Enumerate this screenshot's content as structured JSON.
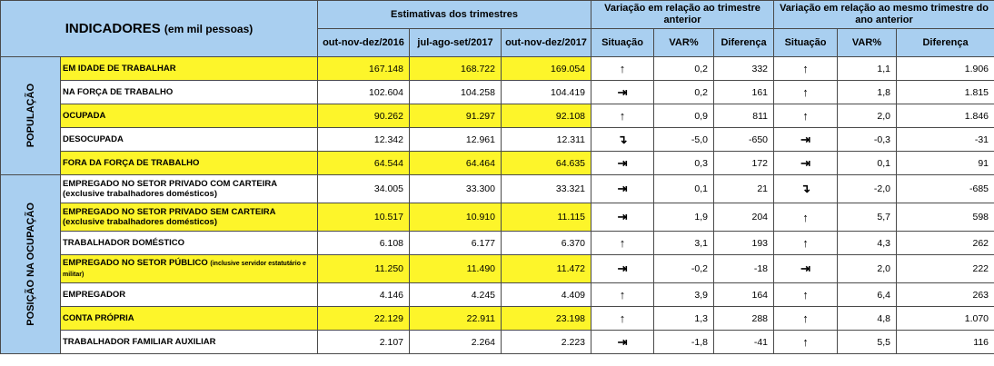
{
  "header": {
    "indicadores": "INDICADORES",
    "indicadores_sub": "(em mil pessoas)",
    "estimativas": "Estimativas dos trimestres",
    "var_anterior": "Variação em relação ao trimestre anterior",
    "var_mesmo": "Variação em relação ao mesmo trimestre do ano anterior",
    "periods": [
      "out-nov-dez/2016",
      "jul-ago-set/2017",
      "out-nov-dez/2017"
    ],
    "col_situacao": "Situação",
    "col_var": "VAR%",
    "col_diferenca": "Diferença"
  },
  "groups": {
    "populacao": "POPULAÇÃO",
    "posicao": "POSIÇÃO NA OCUPAÇÃO"
  },
  "rows": [
    {
      "label": "EM IDADE DE TRABALHAR",
      "sub": "",
      "v1": "167.148",
      "v2": "168.722",
      "v3": "169.054",
      "s1": "↑",
      "var1": "0,2",
      "dif1": "332",
      "s2": "↑",
      "var2": "1,1",
      "dif2": "1.906"
    },
    {
      "label": "NA FORÇA DE TRABALHO",
      "sub": "",
      "v1": "102.604",
      "v2": "104.258",
      "v3": "104.419",
      "s1": "⇥",
      "var1": "0,2",
      "dif1": "161",
      "s2": "↑",
      "var2": "1,8",
      "dif2": "1.815"
    },
    {
      "label": "OCUPADA",
      "sub": "",
      "v1": "90.262",
      "v2": "91.297",
      "v3": "92.108",
      "s1": "↑",
      "var1": "0,9",
      "dif1": "811",
      "s2": "↑",
      "var2": "2,0",
      "dif2": "1.846"
    },
    {
      "label": "DESOCUPADA",
      "sub": "",
      "v1": "12.342",
      "v2": "12.961",
      "v3": "12.311",
      "s1": "↴",
      "var1": "-5,0",
      "dif1": "-650",
      "s2": "⇥",
      "var2": "-0,3",
      "dif2": "-31"
    },
    {
      "label": "FORA DA FORÇA DE TRABALHO",
      "sub": "",
      "v1": "64.544",
      "v2": "64.464",
      "v3": "64.635",
      "s1": "⇥",
      "var1": "0,3",
      "dif1": "172",
      "s2": "⇥",
      "var2": "0,1",
      "dif2": "91"
    },
    {
      "label": "EMPREGADO NO SETOR PRIVADO COM CARTEIRA",
      "sub": "(exclusive trabalhadores domésticos)",
      "v1": "34.005",
      "v2": "33.300",
      "v3": "33.321",
      "s1": "⇥",
      "var1": "0,1",
      "dif1": "21",
      "s2": "↴",
      "var2": "-2,0",
      "dif2": "-685"
    },
    {
      "label": "EMPREGADO NO SETOR PRIVADO SEM CARTEIRA",
      "sub": "(exclusive trabalhadores domésticos)",
      "v1": "10.517",
      "v2": "10.910",
      "v3": "11.115",
      "s1": "⇥",
      "var1": "1,9",
      "dif1": "204",
      "s2": "↑",
      "var2": "5,7",
      "dif2": "598"
    },
    {
      "label": "TRABALHADOR DOMÉSTICO",
      "sub": "",
      "v1": "6.108",
      "v2": "6.177",
      "v3": "6.370",
      "s1": "↑",
      "var1": "3,1",
      "dif1": "193",
      "s2": "↑",
      "var2": "4,3",
      "dif2": "262"
    },
    {
      "label": "EMPREGADO NO SETOR PÚBLICO",
      "inline": "(inclusive servidor estatutário e militar)",
      "sub": "",
      "v1": "11.250",
      "v2": "11.490",
      "v3": "11.472",
      "s1": "⇥",
      "var1": "-0,2",
      "dif1": "-18",
      "s2": "⇥",
      "var2": "2,0",
      "dif2": "222"
    },
    {
      "label": "EMPREGADOR",
      "sub": "",
      "v1": "4.146",
      "v2": "4.245",
      "v3": "4.409",
      "s1": "↑",
      "var1": "3,9",
      "dif1": "164",
      "s2": "↑",
      "var2": "6,4",
      "dif2": "263"
    },
    {
      "label": "CONTA PRÓPRIA",
      "sub": "",
      "v1": "22.129",
      "v2": "22.911",
      "v3": "23.198",
      "s1": "↑",
      "var1": "1,3",
      "dif1": "288",
      "s2": "↑",
      "var2": "4,8",
      "dif2": "1.070"
    },
    {
      "label": "TRABALHADOR FAMILIAR AUXILIAR",
      "sub": "",
      "v1": "2.107",
      "v2": "2.264",
      "v3": "2.223",
      "s1": "⇥",
      "var1": "-1,8",
      "dif1": "-41",
      "s2": "↑",
      "var2": "5,5",
      "dif2": "116"
    }
  ]
}
